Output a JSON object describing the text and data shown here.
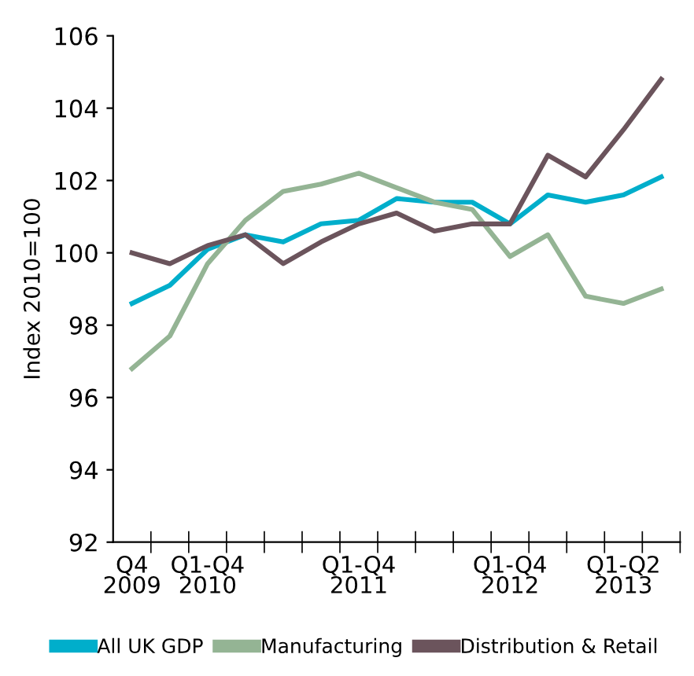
{
  "chart_data": {
    "type": "line",
    "ylabel": "Index 2010=100",
    "categories": [
      "Q4\n2009",
      null,
      "Q1-Q4\n2010",
      null,
      null,
      null,
      "Q1-Q4\n2011",
      null,
      null,
      null,
      "Q1-Q4\n2012",
      null,
      null,
      "Q1-Q2\n2013",
      null
    ],
    "series": [
      {
        "name": "All UK GDP",
        "color": "#00aecb",
        "values": [
          98.6,
          99.1,
          100.1,
          100.5,
          100.3,
          100.8,
          100.9,
          101.5,
          101.4,
          101.4,
          100.8,
          101.6,
          101.4,
          101.6,
          102.1
        ]
      },
      {
        "name": "Manufacturing",
        "color": "#94b494",
        "values": [
          96.8,
          97.7,
          99.7,
          100.9,
          101.7,
          101.9,
          102.2,
          101.8,
          101.4,
          101.2,
          99.9,
          100.5,
          98.8,
          98.6,
          99.0
        ]
      },
      {
        "name": "Distribution & Retail",
        "color": "#6b545c",
        "values": [
          100.0,
          99.7,
          100.2,
          100.5,
          99.7,
          100.3,
          100.8,
          101.1,
          100.6,
          100.8,
          100.8,
          102.7,
          102.1,
          103.4,
          104.8
        ]
      }
    ],
    "ylim": [
      92,
      106
    ],
    "yticks": [
      92,
      94,
      96,
      98,
      100,
      102,
      104,
      106
    ],
    "grid": false,
    "legend": "bottom",
    "marker": "none",
    "line_style": "solid"
  }
}
